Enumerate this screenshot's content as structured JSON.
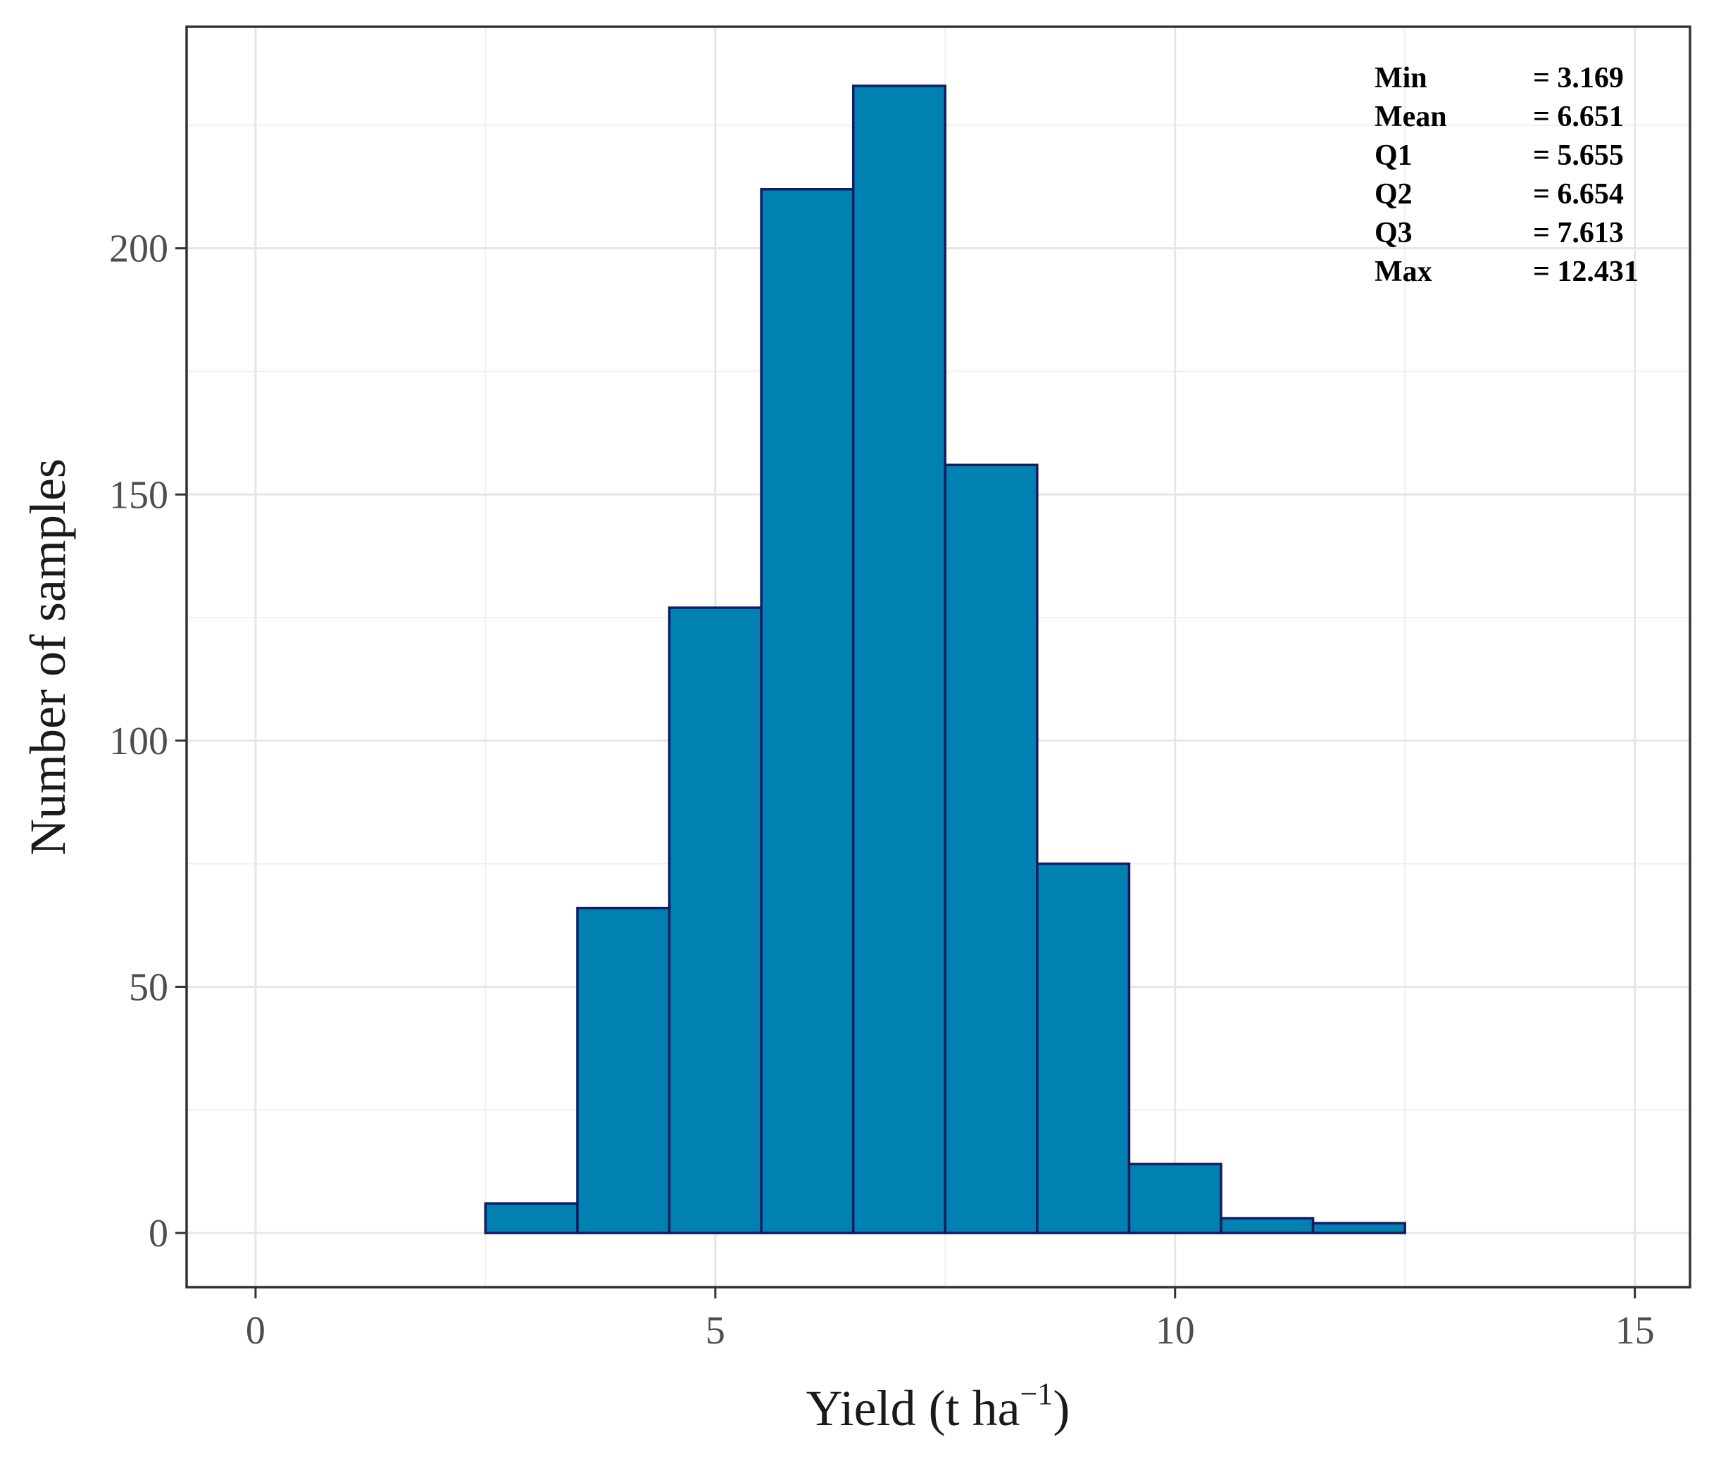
{
  "chart_data": {
    "type": "bar",
    "subtype": "histogram",
    "title": "",
    "xlabel": "Yield (t ha",
    "xlabel_sup": "−1",
    "xlabel_close": ")",
    "ylabel": "Number of samples",
    "xlim": [
      -0.75,
      15.6
    ],
    "ylim": [
      -11,
      245
    ],
    "x_ticks": [
      0,
      5,
      10,
      15
    ],
    "x_tick_labels": [
      "0",
      "5",
      "10",
      "15"
    ],
    "x_minor_ticks": [
      2.5,
      7.5,
      12.5
    ],
    "y_ticks": [
      0,
      50,
      100,
      150,
      200
    ],
    "y_tick_labels": [
      "0",
      "50",
      "100",
      "150",
      "200"
    ],
    "y_minor_ticks": [
      25,
      75,
      125,
      175,
      225
    ],
    "grid": true,
    "bin_width": 1,
    "bins": [
      {
        "center": 1,
        "count": 0
      },
      {
        "center": 2,
        "count": 0
      },
      {
        "center": 3,
        "count": 6
      },
      {
        "center": 4,
        "count": 66
      },
      {
        "center": 5,
        "count": 127
      },
      {
        "center": 6,
        "count": 212
      },
      {
        "center": 7,
        "count": 233
      },
      {
        "center": 8,
        "count": 156
      },
      {
        "center": 9,
        "count": 75
      },
      {
        "center": 10,
        "count": 14
      },
      {
        "center": 11,
        "count": 3
      },
      {
        "center": 12,
        "count": 2
      },
      {
        "center": 13,
        "count": 0
      },
      {
        "center": 14,
        "count": 0
      }
    ],
    "bar_fill": "#0081B1",
    "bar_stroke": "#1A1A5E",
    "stats": [
      {
        "label": "Min",
        "value": "= 3.169"
      },
      {
        "label": "Mean",
        "value": "= 6.651"
      },
      {
        "label": "Q1",
        "value": "= 5.655"
      },
      {
        "label": "Q2",
        "value": "= 6.654"
      },
      {
        "label": "Q3",
        "value": "= 7.613"
      },
      {
        "label": "Max",
        "value": "= 12.431"
      }
    ]
  }
}
